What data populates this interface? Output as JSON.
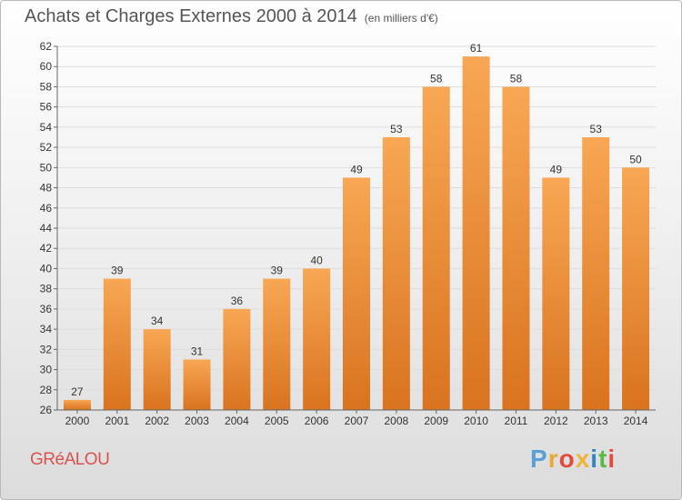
{
  "header": {
    "title": "Achats et Charges Externes 2000 à 2014",
    "subtitle": "(en milliers d'€)"
  },
  "footer": {
    "commune": "GRéALOU",
    "logo_text": "Proxiti"
  },
  "colors": {
    "bar_top": "#f8a754",
    "bar_bottom": "#d9731f",
    "commune": "#d9534f",
    "logo": [
      "#5aa0d8",
      "#e8a93a",
      "#e24b3c",
      "#f0b43c",
      "#2f87c7",
      "#58b947",
      "#e24b3c"
    ]
  },
  "chart_data": {
    "type": "bar",
    "categories": [
      "2000",
      "2001",
      "2002",
      "2003",
      "2004",
      "2005",
      "2006",
      "2007",
      "2008",
      "2009",
      "2010",
      "2011",
      "2012",
      "2013",
      "2014"
    ],
    "values": [
      27,
      39,
      34,
      31,
      36,
      39,
      40,
      49,
      53,
      58,
      61,
      58,
      49,
      53,
      50
    ],
    "ylim": [
      26,
      62
    ],
    "yticks": [
      26,
      28,
      30,
      32,
      34,
      36,
      38,
      40,
      42,
      44,
      46,
      48,
      50,
      52,
      54,
      56,
      58,
      60,
      62
    ],
    "grid": true,
    "legend": "none"
  }
}
